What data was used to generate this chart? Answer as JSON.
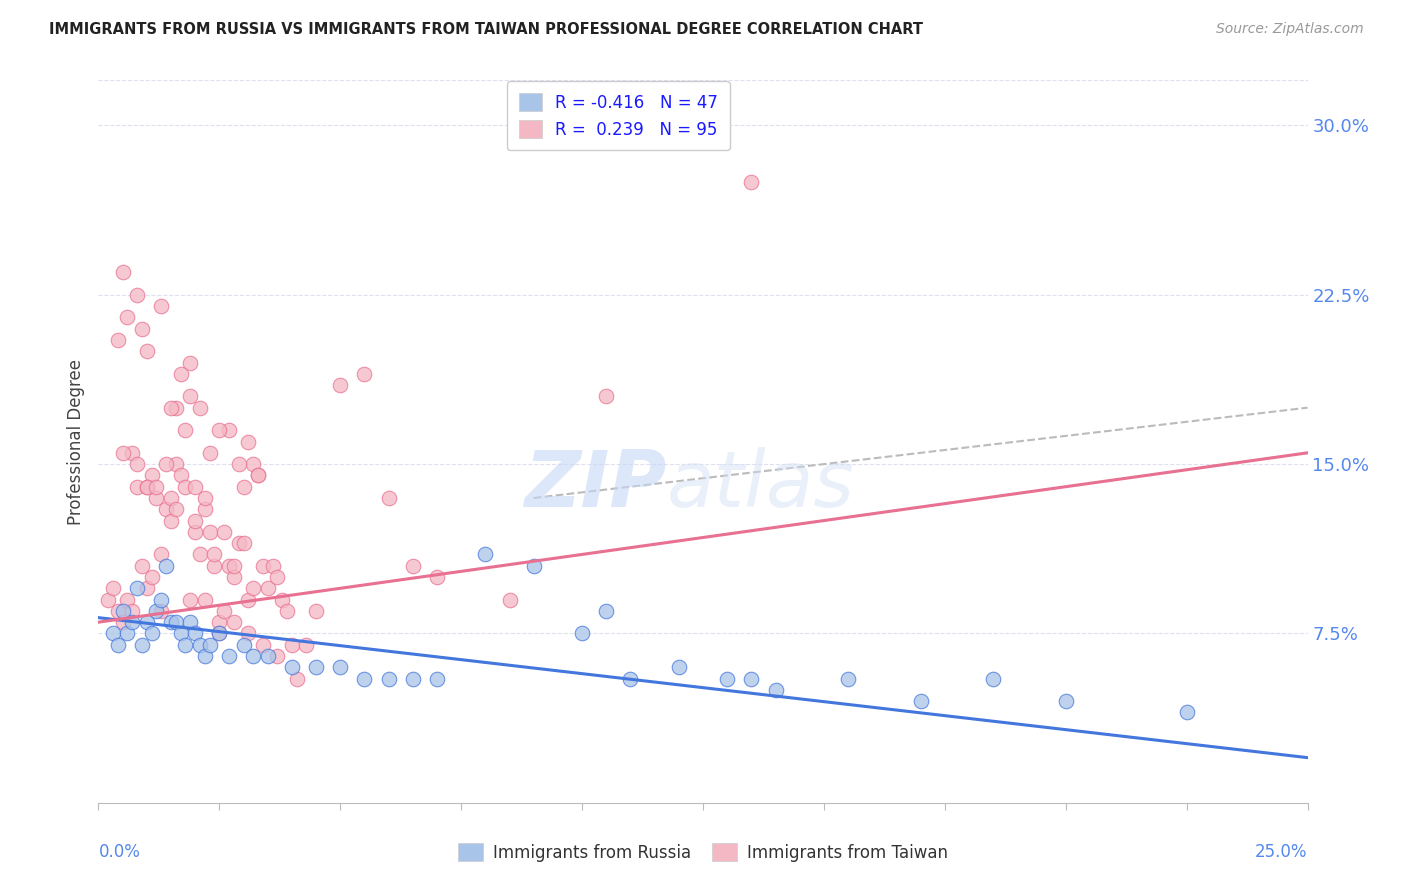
{
  "title": "IMMIGRANTS FROM RUSSIA VS IMMIGRANTS FROM TAIWAN PROFESSIONAL DEGREE CORRELATION CHART",
  "source": "Source: ZipAtlas.com",
  "ylabel": "Professional Degree",
  "xmin": 0.0,
  "xmax": 25.0,
  "ymin": 0.0,
  "ymax": 32.0,
  "yticks": [
    7.5,
    15.0,
    22.5,
    30.0
  ],
  "watermark_zip": "ZIP",
  "watermark_atlas": "atlas",
  "color_russia": "#a8c4e8",
  "color_taiwan": "#f4b8c4",
  "line_russia": "#4477dd",
  "line_taiwan": "#e87090",
  "line_dashed_color": "#bbbbbb",
  "russia_R": -0.416,
  "russia_N": 47,
  "taiwan_R": 0.239,
  "taiwan_N": 95,
  "russia_trend_x0": 0.0,
  "russia_trend_y0": 8.2,
  "russia_trend_x1": 25.0,
  "russia_trend_y1": 2.0,
  "taiwan_trend_x0": 0.0,
  "taiwan_trend_y0": 8.0,
  "taiwan_trend_x1": 25.0,
  "taiwan_trend_y1": 15.5,
  "dash_x0": 9.0,
  "dash_y0": 13.5,
  "dash_x1": 25.0,
  "dash_y1": 17.5,
  "russia_dots_x": [
    0.3,
    0.4,
    0.5,
    0.6,
    0.7,
    0.8,
    0.9,
    1.0,
    1.1,
    1.2,
    1.3,
    1.4,
    1.5,
    1.6,
    1.7,
    1.8,
    1.9,
    2.0,
    2.1,
    2.2,
    2.3,
    2.5,
    2.7,
    3.0,
    3.2,
    3.5,
    4.0,
    4.5,
    5.0,
    5.5,
    6.0,
    6.5,
    7.0,
    8.0,
    9.0,
    10.0,
    11.0,
    12.0,
    13.0,
    14.0,
    15.5,
    17.0,
    18.5,
    20.0,
    22.5,
    10.5,
    13.5
  ],
  "russia_dots_y": [
    7.5,
    7.0,
    8.5,
    7.5,
    8.0,
    9.5,
    7.0,
    8.0,
    7.5,
    8.5,
    9.0,
    10.5,
    8.0,
    8.0,
    7.5,
    7.0,
    8.0,
    7.5,
    7.0,
    6.5,
    7.0,
    7.5,
    6.5,
    7.0,
    6.5,
    6.5,
    6.0,
    6.0,
    6.0,
    5.5,
    5.5,
    5.5,
    5.5,
    11.0,
    10.5,
    7.5,
    5.5,
    6.0,
    5.5,
    5.0,
    5.5,
    4.5,
    5.5,
    4.5,
    4.0,
    8.5,
    5.5
  ],
  "taiwan_dots_x": [
    0.2,
    0.3,
    0.4,
    0.5,
    0.6,
    0.7,
    0.8,
    0.9,
    1.0,
    1.1,
    1.2,
    1.3,
    1.4,
    1.5,
    1.6,
    1.7,
    1.8,
    1.9,
    2.0,
    2.1,
    2.2,
    2.3,
    2.4,
    2.5,
    2.6,
    2.7,
    2.8,
    2.9,
    3.0,
    3.1,
    3.2,
    3.3,
    3.4,
    3.5,
    3.6,
    3.7,
    3.8,
    3.9,
    4.0,
    4.1,
    4.3,
    4.5,
    5.0,
    5.5,
    6.0,
    6.5,
    7.0,
    8.5,
    10.5,
    13.5,
    0.5,
    0.8,
    1.0,
    1.3,
    1.6,
    1.9,
    2.2,
    2.5,
    2.8,
    3.1,
    3.4,
    3.7,
    0.4,
    0.7,
    1.1,
    1.5,
    1.9,
    2.3,
    2.7,
    3.1,
    0.6,
    1.0,
    1.4,
    1.8,
    2.2,
    2.6,
    3.0,
    0.9,
    1.3,
    1.7,
    2.1,
    2.5,
    2.9,
    3.3,
    1.0,
    1.5,
    2.0,
    2.4,
    2.8,
    3.2,
    0.5,
    0.8,
    1.2,
    1.6,
    2.0
  ],
  "taiwan_dots_y": [
    9.0,
    9.5,
    8.5,
    8.0,
    9.0,
    8.5,
    14.0,
    10.5,
    9.5,
    10.0,
    13.5,
    11.0,
    13.0,
    12.5,
    15.0,
    14.5,
    14.0,
    9.0,
    14.0,
    11.0,
    13.0,
    12.0,
    10.5,
    8.0,
    8.5,
    10.5,
    10.0,
    11.5,
    14.0,
    9.0,
    15.0,
    14.5,
    10.5,
    9.5,
    10.5,
    10.0,
    9.0,
    8.5,
    7.0,
    5.5,
    7.0,
    8.5,
    18.5,
    19.0,
    13.5,
    10.5,
    10.0,
    9.0,
    18.0,
    27.5,
    23.5,
    22.5,
    20.0,
    8.5,
    17.5,
    19.5,
    9.0,
    7.5,
    8.0,
    7.5,
    7.0,
    6.5,
    20.5,
    15.5,
    14.5,
    17.5,
    18.0,
    15.5,
    16.5,
    16.0,
    21.5,
    14.0,
    15.0,
    16.5,
    13.5,
    12.0,
    11.5,
    21.0,
    22.0,
    19.0,
    17.5,
    16.5,
    15.0,
    14.5,
    14.0,
    13.5,
    12.0,
    11.0,
    10.5,
    9.5,
    15.5,
    15.0,
    14.0,
    13.0,
    12.5
  ]
}
